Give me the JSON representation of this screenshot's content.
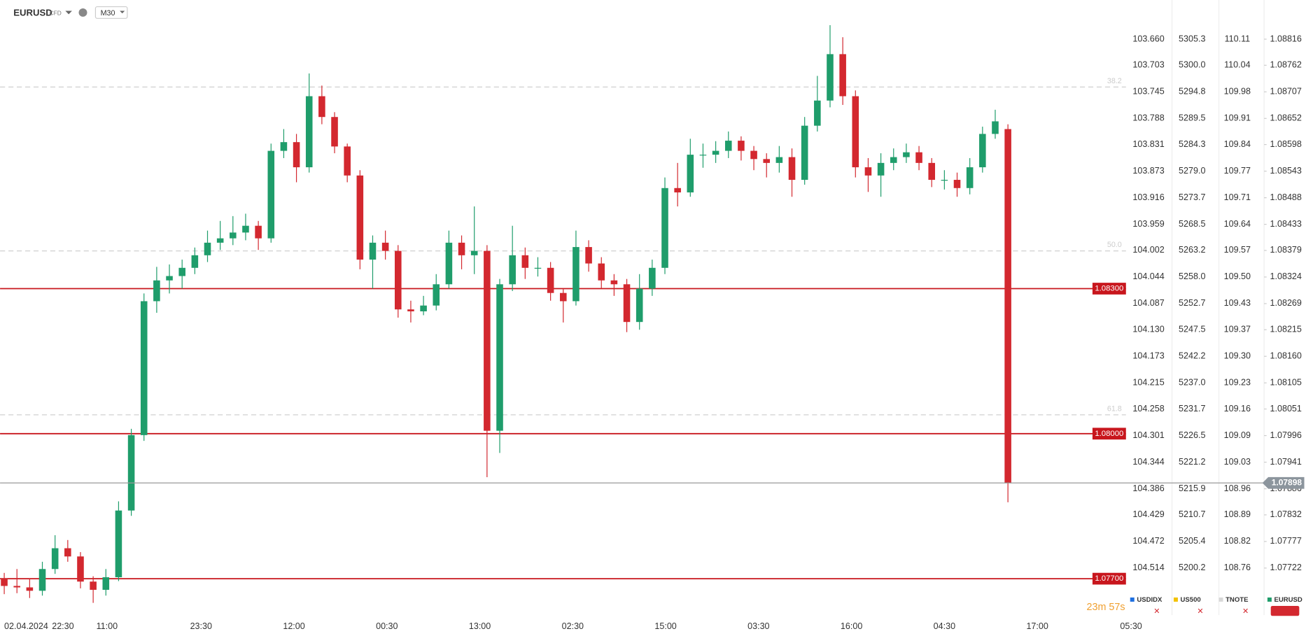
{
  "header": {
    "symbol": "EURUSD",
    "badge": "CFD",
    "interval": "M30"
  },
  "chart_data": {
    "type": "candlestick",
    "x_labels": [
      "02.04.2024",
      "22:30",
      "11:00",
      "23:30",
      "12:00",
      "00:30",
      "13:00",
      "02:30",
      "15:00",
      "03:30",
      "16:00",
      "04:30",
      "17:00",
      "05:30"
    ],
    "up_color": "#1f9d6b",
    "down_color": "#d3282f",
    "open": [
      1.077,
      1.07685,
      1.07682,
      1.07675,
      1.0772,
      1.07763,
      1.07746,
      1.07694,
      1.07677,
      1.07703,
      1.07841,
      1.07997,
      1.08274,
      1.08317,
      1.08326,
      1.08343,
      1.08369,
      1.08395,
      1.08404,
      1.08416,
      1.0843,
      1.08404,
      1.08585,
      1.08603,
      1.08551,
      1.08698,
      1.08655,
      1.08594,
      1.08534,
      1.0836,
      1.08395,
      1.08378,
      1.08257,
      1.08253,
      1.08265,
      1.08309,
      1.08395,
      1.08369,
      1.08378,
      1.08006,
      1.08309,
      1.08369,
      1.08343,
      1.08343,
      1.08291,
      1.08274,
      1.08386,
      1.08352,
      1.08317,
      1.08309,
      1.08231,
      1.083,
      1.08343,
      1.08508,
      1.08499,
      1.08577,
      1.08577,
      1.08585,
      1.08606,
      1.08585,
      1.08568,
      1.0856,
      1.08572,
      1.08525,
      1.08637,
      1.08689,
      1.08785,
      1.08698,
      1.08551,
      1.08534,
      1.0856,
      1.08572,
      1.08582,
      1.0856,
      1.08525,
      1.08525,
      1.08508,
      1.08551,
      1.0862,
      1.0863
    ],
    "high": [
      1.07712,
      1.0772,
      1.077,
      1.07735,
      1.0779,
      1.0778,
      1.07755,
      1.07705,
      1.0772,
      1.0786,
      1.0801,
      1.0829,
      1.08345,
      1.0835,
      1.0836,
      1.08385,
      1.0842,
      1.0844,
      1.0845,
      1.08455,
      1.0844,
      1.086,
      1.0863,
      1.0862,
      1.08745,
      1.0872,
      1.08665,
      1.086,
      1.08545,
      1.0841,
      1.0842,
      1.0839,
      1.08275,
      1.08285,
      1.0833,
      1.0842,
      1.0841,
      1.0847,
      1.0839,
      1.0832,
      1.0843,
      1.08385,
      1.08365,
      1.08355,
      1.083,
      1.0842,
      1.084,
      1.08365,
      1.0833,
      1.0832,
      1.0833,
      1.0836,
      1.0853,
      1.0856,
      1.0861,
      1.086,
      1.08605,
      1.08625,
      1.08615,
      1.08595,
      1.0858,
      1.08595,
      1.0859,
      1.08655,
      1.0874,
      1.08845,
      1.0882,
      1.0871,
      1.0857,
      1.0858,
      1.0859,
      1.086,
      1.08595,
      1.0857,
      1.08545,
      1.0854,
      1.0857,
      1.08635,
      1.0867,
      1.0864
    ],
    "low": [
      1.07668,
      1.0767,
      1.0766,
      1.07665,
      1.0771,
      1.07735,
      1.0768,
      1.0765,
      1.07665,
      1.07695,
      1.0783,
      1.07985,
      1.0825,
      1.0829,
      1.083,
      1.0833,
      1.08355,
      1.0838,
      1.0839,
      1.084,
      1.0838,
      1.08395,
      1.0857,
      1.0852,
      1.0854,
      1.0864,
      1.0858,
      1.0852,
      1.0834,
      1.083,
      1.0836,
      1.0824,
      1.0823,
      1.08245,
      1.08255,
      1.083,
      1.0834,
      1.0833,
      1.0791,
      1.0796,
      1.08295,
      1.0832,
      1.08325,
      1.08275,
      1.0823,
      1.08265,
      1.08335,
      1.083,
      1.08285,
      1.0821,
      1.08215,
      1.08285,
      1.0833,
      1.0847,
      1.0849,
      1.0855,
      1.0856,
      1.0857,
      1.08565,
      1.08545,
      1.0853,
      1.0854,
      1.0849,
      1.08515,
      1.08625,
      1.08675,
      1.0868,
      1.0853,
      1.085,
      1.0849,
      1.08545,
      1.0856,
      1.08545,
      1.0851,
      1.08505,
      1.0849,
      1.08495,
      1.0854,
      1.0861,
      1.07858
    ],
    "close": [
      1.07685,
      1.07682,
      1.07675,
      1.0772,
      1.07763,
      1.07746,
      1.07694,
      1.07677,
      1.07703,
      1.07841,
      1.07997,
      1.08274,
      1.08317,
      1.08326,
      1.08343,
      1.08369,
      1.08395,
      1.08404,
      1.08416,
      1.0843,
      1.08404,
      1.08585,
      1.08603,
      1.08551,
      1.08698,
      1.08655,
      1.08594,
      1.08534,
      1.0836,
      1.08395,
      1.08378,
      1.08257,
      1.08253,
      1.08265,
      1.08309,
      1.08395,
      1.08369,
      1.08378,
      1.08006,
      1.08309,
      1.08369,
      1.08343,
      1.08343,
      1.08291,
      1.08274,
      1.08386,
      1.08352,
      1.08317,
      1.08309,
      1.08231,
      1.083,
      1.08343,
      1.08508,
      1.08499,
      1.08577,
      1.08577,
      1.08585,
      1.08606,
      1.08585,
      1.08568,
      1.0856,
      1.08572,
      1.08525,
      1.08637,
      1.08689,
      1.08785,
      1.08698,
      1.08551,
      1.08534,
      1.0856,
      1.08572,
      1.08582,
      1.0856,
      1.08525,
      1.08525,
      1.08508,
      1.08551,
      1.0862,
      1.08646,
      1.07898
    ],
    "ylim": [
      1.07668,
      1.08897
    ],
    "yticks": [
      1.08816,
      1.08762,
      1.08707,
      1.08652,
      1.08598,
      1.08543,
      1.08488,
      1.08433,
      1.08379,
      1.08324,
      1.08269,
      1.08215,
      {
        "value": 1.0816,
        "label": "1.08160"
      },
      1.08105,
      1.08051,
      1.07996,
      1.07941,
      1.07886,
      1.07832,
      1.07777,
      1.07722
    ],
    "levels": [
      {
        "value": 1.083,
        "label": "1.08300"
      },
      {
        "value": 1.08,
        "label": "1.08000"
      },
      {
        "value": 1.077,
        "label": "1.07700"
      }
    ],
    "level_color": "#c8161d",
    "fib_levels": [
      {
        "value": 1.08717,
        "label": "38.2"
      },
      {
        "value": 1.08378,
        "label": "50.0"
      },
      {
        "value": 1.08039,
        "label": "61.8"
      }
    ],
    "last_price": 1.07898,
    "timer": "23m 57s",
    "scales": [
      {
        "name": "USDIDX",
        "color": "#1e6fe0",
        "labels": [
          "103.660",
          "103.703",
          "103.745",
          "103.788",
          "103.831",
          "103.873",
          "103.916",
          "103.959",
          "104.002",
          "104.044",
          "104.087",
          "104.130",
          "104.173",
          "104.215",
          "104.258",
          "104.301",
          "104.344",
          "104.386",
          "104.429",
          "104.472",
          "104.514"
        ]
      },
      {
        "name": "US500",
        "color": "#f2c200",
        "labels": [
          "5305.3",
          "5300.0",
          "5294.8",
          "5289.5",
          "5284.3",
          "5279.0",
          "5273.7",
          "5268.5",
          "5263.2",
          "5258.0",
          "5252.7",
          "5247.5",
          "5242.2",
          "5237.0",
          "5231.7",
          "5226.5",
          "5221.2",
          "5215.9",
          "5210.7",
          "5205.4",
          "5200.2"
        ]
      },
      {
        "name": "TNOTE",
        "color": "#d8d8d8",
        "labels": [
          "110.11",
          "110.04",
          "109.98",
          "109.91",
          "109.84",
          "109.77",
          "109.71",
          "109.64",
          "109.57",
          "109.50",
          "109.43",
          "109.37",
          "109.30",
          "109.23",
          "109.16",
          "109.09",
          "109.03",
          "108.96",
          "108.89",
          "108.82",
          "108.76"
        ]
      },
      {
        "name": "EURUSD",
        "color": "#1f9d6b"
      }
    ]
  }
}
